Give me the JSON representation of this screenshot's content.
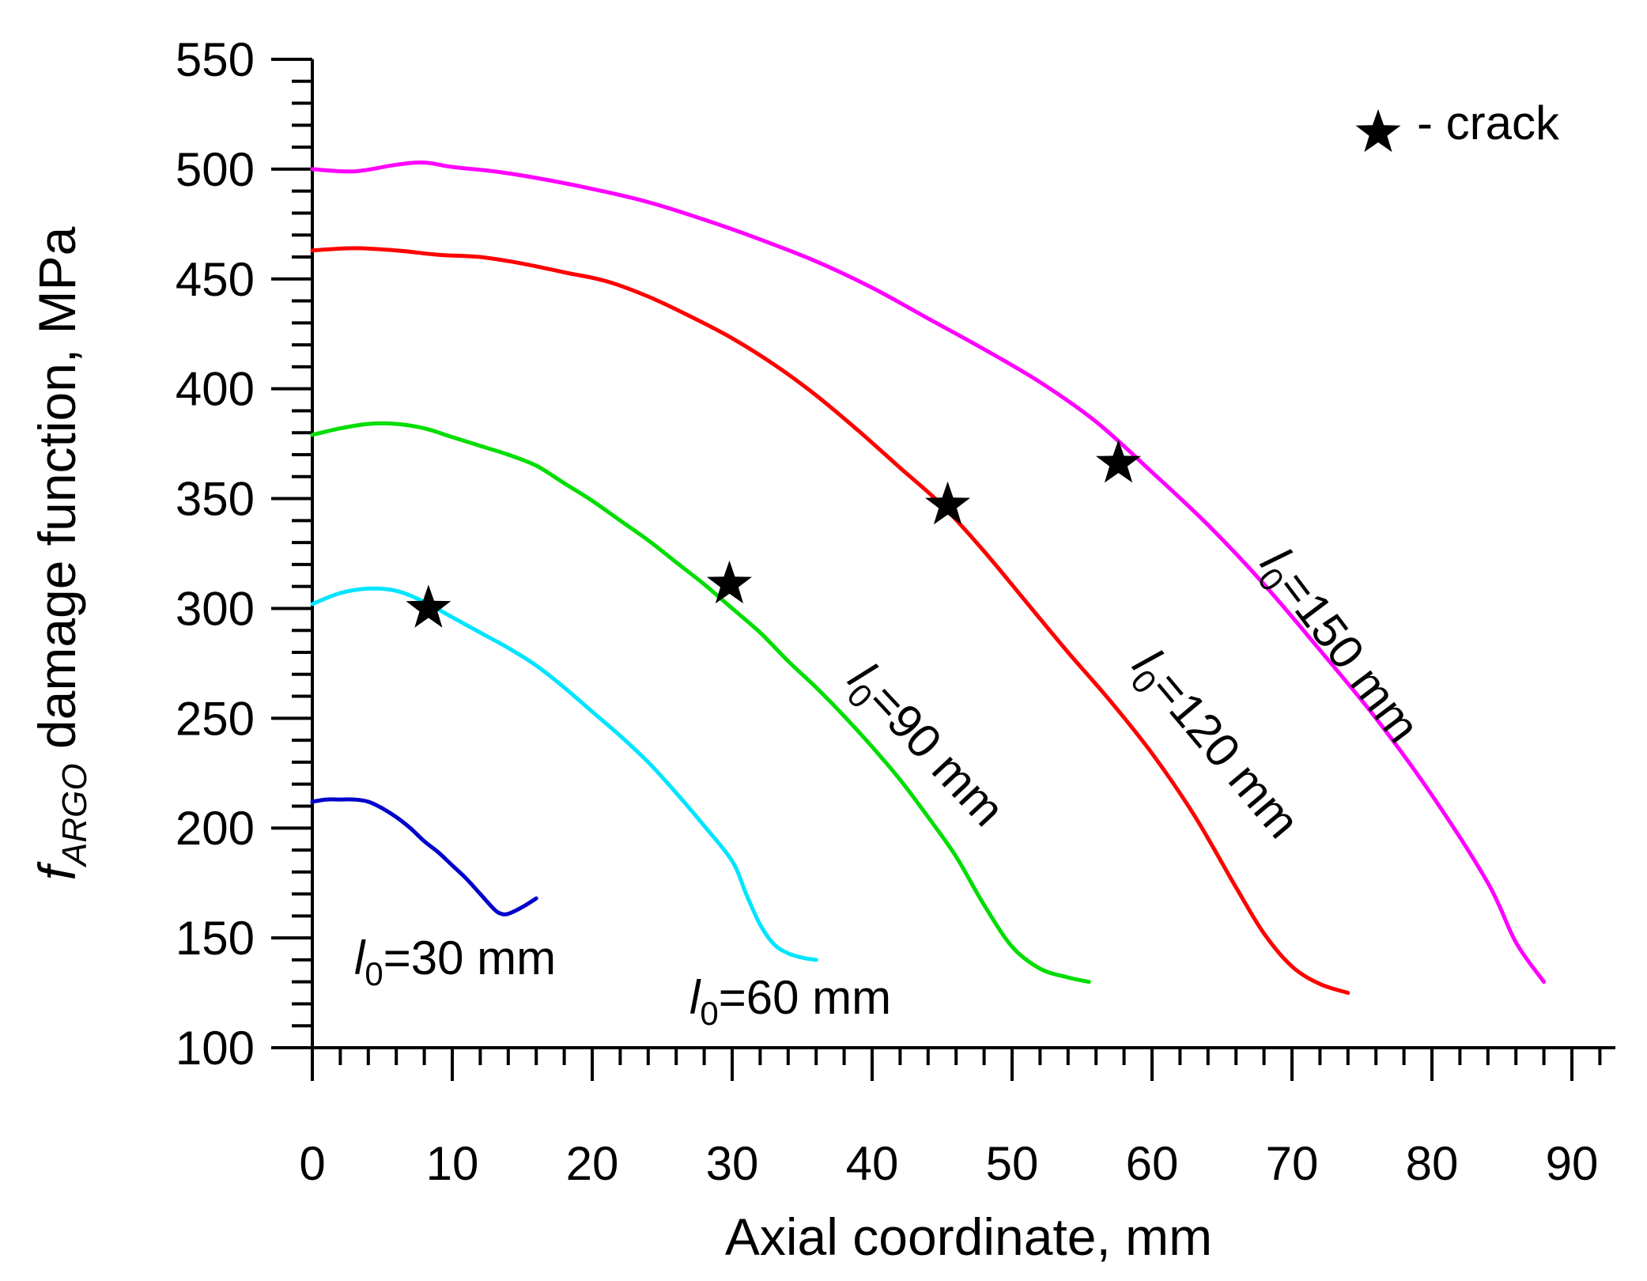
{
  "chart_data": {
    "type": "line",
    "title": "",
    "xlabel": "Axial coordinate, mm",
    "ylabel": {
      "prefix": "f",
      "subscript": "ARGO",
      "rest": " damage function, MPa"
    },
    "xlim": [
      0,
      92
    ],
    "ylim": [
      100,
      550
    ],
    "x_ticks": [
      0,
      10,
      20,
      30,
      40,
      50,
      60,
      70,
      80,
      90
    ],
    "y_ticks": [
      100,
      150,
      200,
      250,
      300,
      350,
      400,
      450,
      500,
      550
    ],
    "x_minor_step": 2,
    "y_minor_step": 10,
    "grid": false,
    "series": [
      {
        "name": "l0=30 mm",
        "label": {
          "pre": "l",
          "sub": "0",
          "post": "=30 mm"
        },
        "color": "#0000cc",
        "x": [
          0,
          1,
          2,
          3,
          4,
          5,
          6,
          7,
          8,
          9,
          10,
          11,
          12,
          13,
          13.5,
          14,
          15,
          16
        ],
        "y": [
          212,
          213,
          213,
          213,
          212,
          209,
          205,
          200,
          194,
          189,
          183,
          177,
          170,
          163,
          161,
          161,
          164,
          168
        ]
      },
      {
        "name": "l0=60 mm",
        "label": {
          "pre": "l",
          "sub": "0",
          "post": "=60 mm"
        },
        "color": "#00e5ff",
        "x": [
          0,
          2,
          4,
          6,
          8,
          10,
          12,
          14,
          16,
          18,
          20,
          22,
          24,
          26,
          28,
          30,
          31,
          32,
          33,
          34,
          35,
          36
        ],
        "y": [
          302,
          307,
          309,
          308,
          303,
          296,
          289,
          282,
          274,
          264,
          253,
          242,
          230,
          216,
          201,
          185,
          170,
          156,
          147,
          143,
          141,
          140
        ]
      },
      {
        "name": "l0=90 mm",
        "label": {
          "pre": "l",
          "sub": "0",
          "post": "=90 mm"
        },
        "color": "#00dd00",
        "x": [
          0,
          2,
          4,
          6,
          8,
          10,
          12,
          14,
          16,
          18,
          20,
          22,
          24,
          26,
          28,
          30,
          32,
          34,
          36,
          38,
          40,
          42,
          44,
          46,
          48,
          50,
          52,
          54,
          55.5
        ],
        "y": [
          379,
          382,
          384,
          384,
          382,
          378,
          374,
          370,
          365,
          357,
          349,
          340,
          331,
          321,
          311,
          300,
          289,
          276,
          264,
          251,
          237,
          222,
          205,
          187,
          165,
          146,
          136,
          132,
          130
        ]
      },
      {
        "name": "l0=120 mm",
        "label": {
          "pre": "l",
          "sub": "0",
          "post": "=120 mm"
        },
        "color": "#ff0000",
        "x": [
          0,
          3,
          6,
          9,
          12,
          15,
          18,
          21,
          24,
          27,
          30,
          33,
          36,
          39,
          42,
          45,
          48,
          51,
          54,
          57,
          60,
          63,
          66,
          68,
          70,
          72,
          74
        ],
        "y": [
          463,
          464,
          463,
          461,
          460,
          457,
          453,
          449,
          442,
          433,
          423,
          411,
          397,
          381,
          364,
          347,
          326,
          303,
          280,
          258,
          234,
          206,
          173,
          152,
          137,
          129,
          125
        ]
      },
      {
        "name": "l0=150 mm",
        "label": {
          "pre": "l",
          "sub": "0",
          "post": "=150 mm"
        },
        "color": "#ff00ff",
        "x": [
          0,
          3,
          6,
          8,
          10,
          13,
          16,
          20,
          24,
          28,
          32,
          36,
          40,
          44,
          48,
          52,
          56,
          60,
          64,
          68,
          72,
          76,
          80,
          84,
          86,
          88
        ],
        "y": [
          500,
          499,
          502,
          503,
          501,
          499,
          496,
          491,
          485,
          477,
          468,
          458,
          446,
          432,
          418,
          403,
          385,
          362,
          338,
          311,
          281,
          250,
          215,
          175,
          148,
          130
        ]
      }
    ],
    "crack_markers": [
      {
        "x": 8.3,
        "y": 300
      },
      {
        "x": 29.8,
        "y": 311
      },
      {
        "x": 45.4,
        "y": 347
      },
      {
        "x": 57.6,
        "y": 366
      }
    ],
    "legend": {
      "position": "top-right",
      "text": "- crack"
    }
  }
}
